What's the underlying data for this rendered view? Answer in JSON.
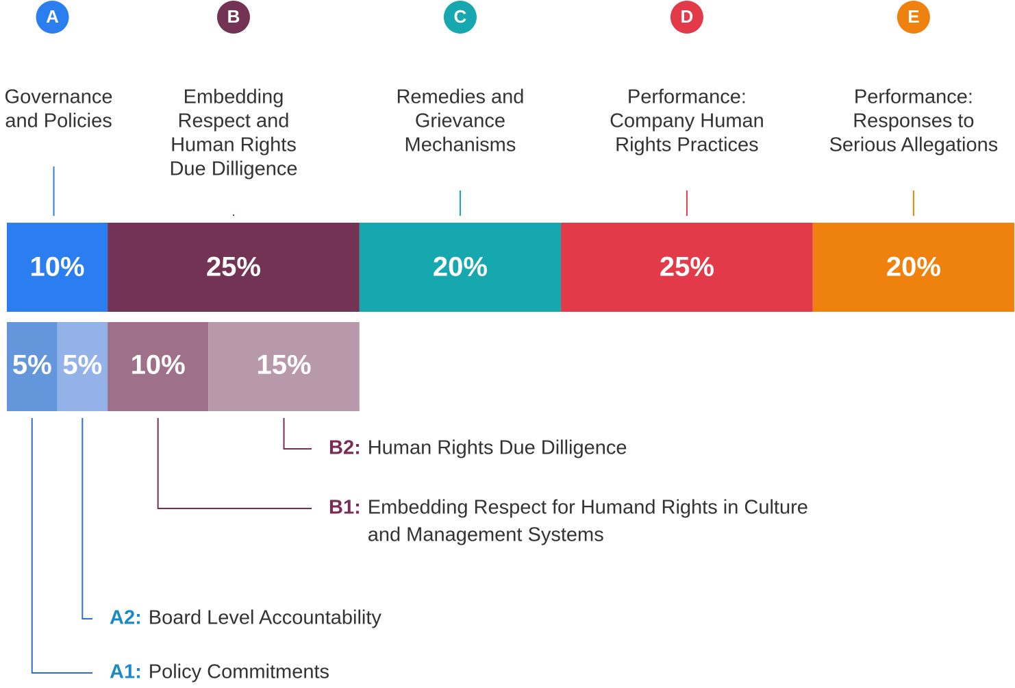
{
  "categories": [
    {
      "letter": "A",
      "label_lines": [
        "Governance",
        "and Policies"
      ],
      "color": "#2a7ef0",
      "value": 10,
      "value_label": "10%"
    },
    {
      "letter": "B",
      "label_lines": [
        "Embedding",
        "Respect and",
        "Human Rights",
        "Due Dilligence"
      ],
      "color": "#733355",
      "value": 25,
      "value_label": "25%"
    },
    {
      "letter": "C",
      "label_lines": [
        "Remedies and",
        "Grievance",
        "Mechanisms"
      ],
      "color": "#17a7ae",
      "value": 20,
      "value_label": "20%"
    },
    {
      "letter": "D",
      "label_lines": [
        "Performance:",
        "Company Human",
        "Rights Practices"
      ],
      "color": "#e23a48",
      "value": 25,
      "value_label": "25%"
    },
    {
      "letter": "E",
      "label_lines": [
        "Performance:",
        "Responses to",
        "Serious Allegations"
      ],
      "color": "#ef820f",
      "value": 20,
      "value_label": "20%"
    }
  ],
  "subcategories": [
    {
      "code": "A1:",
      "label_lines": [
        "Policy Commitments"
      ],
      "color": "#6496dc",
      "code_color": "#1a8ac7",
      "line_color": "#2a6fd6",
      "value": 5,
      "value_label": "5%"
    },
    {
      "code": "A2:",
      "label_lines": [
        "Board Level Accountability"
      ],
      "color": "#93b3e8",
      "code_color": "#1a8ac7",
      "line_color": "#2a6fd6",
      "value": 5,
      "value_label": "5%"
    },
    {
      "code": "B1:",
      "label_lines": [
        "Embedding Respect for Humand Rights in Culture",
        "and Management Systems"
      ],
      "color": "#9e7089",
      "code_color": "#7a2c55",
      "line_color": "#7a2c55",
      "value": 10,
      "value_label": "10%"
    },
    {
      "code": "B2:",
      "label_lines": [
        "Human Rights Due Dilligence"
      ],
      "color": "#b899ab",
      "code_color": "#7a2c55",
      "line_color": "#7a2c55",
      "value": 15,
      "value_label": "15%"
    }
  ]
}
